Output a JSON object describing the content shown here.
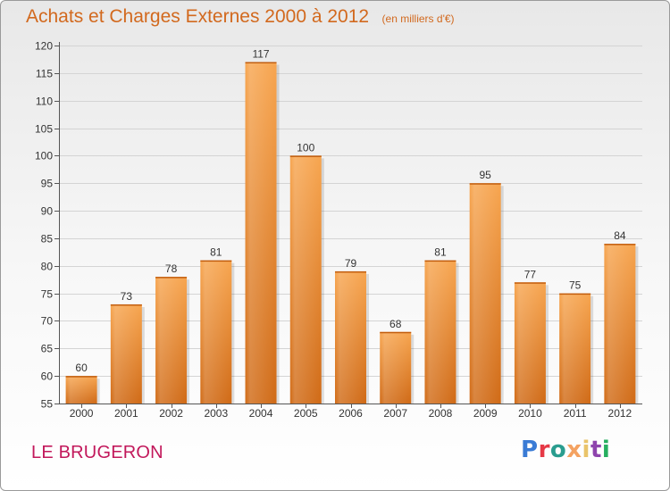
{
  "header": {
    "title": "Achats et Charges Externes 2000 à 2012",
    "subtitle": "(en milliers d'€)"
  },
  "footer": {
    "commune": "LE BRUGERON",
    "logo_text": "Proxiti",
    "logo_colors": [
      "#3a7bd5",
      "#e63946",
      "#2a9d8f",
      "#f4a261",
      "#e9c46a",
      "#8e44ad",
      "#27ae60"
    ]
  },
  "chart_data": {
    "type": "bar",
    "categories": [
      "2000",
      "2001",
      "2002",
      "2003",
      "2004",
      "2005",
      "2006",
      "2007",
      "2008",
      "2009",
      "2010",
      "2011",
      "2012"
    ],
    "values": [
      60,
      73,
      78,
      81,
      117,
      100,
      79,
      68,
      81,
      95,
      77,
      75,
      84
    ],
    "ylim": [
      55,
      120
    ],
    "yticks": [
      55,
      60,
      65,
      70,
      75,
      80,
      85,
      90,
      95,
      100,
      105,
      110,
      115,
      120
    ],
    "grid": true,
    "bar_color_top": "#f7a54f",
    "bar_color_bottom": "#d06a16"
  }
}
